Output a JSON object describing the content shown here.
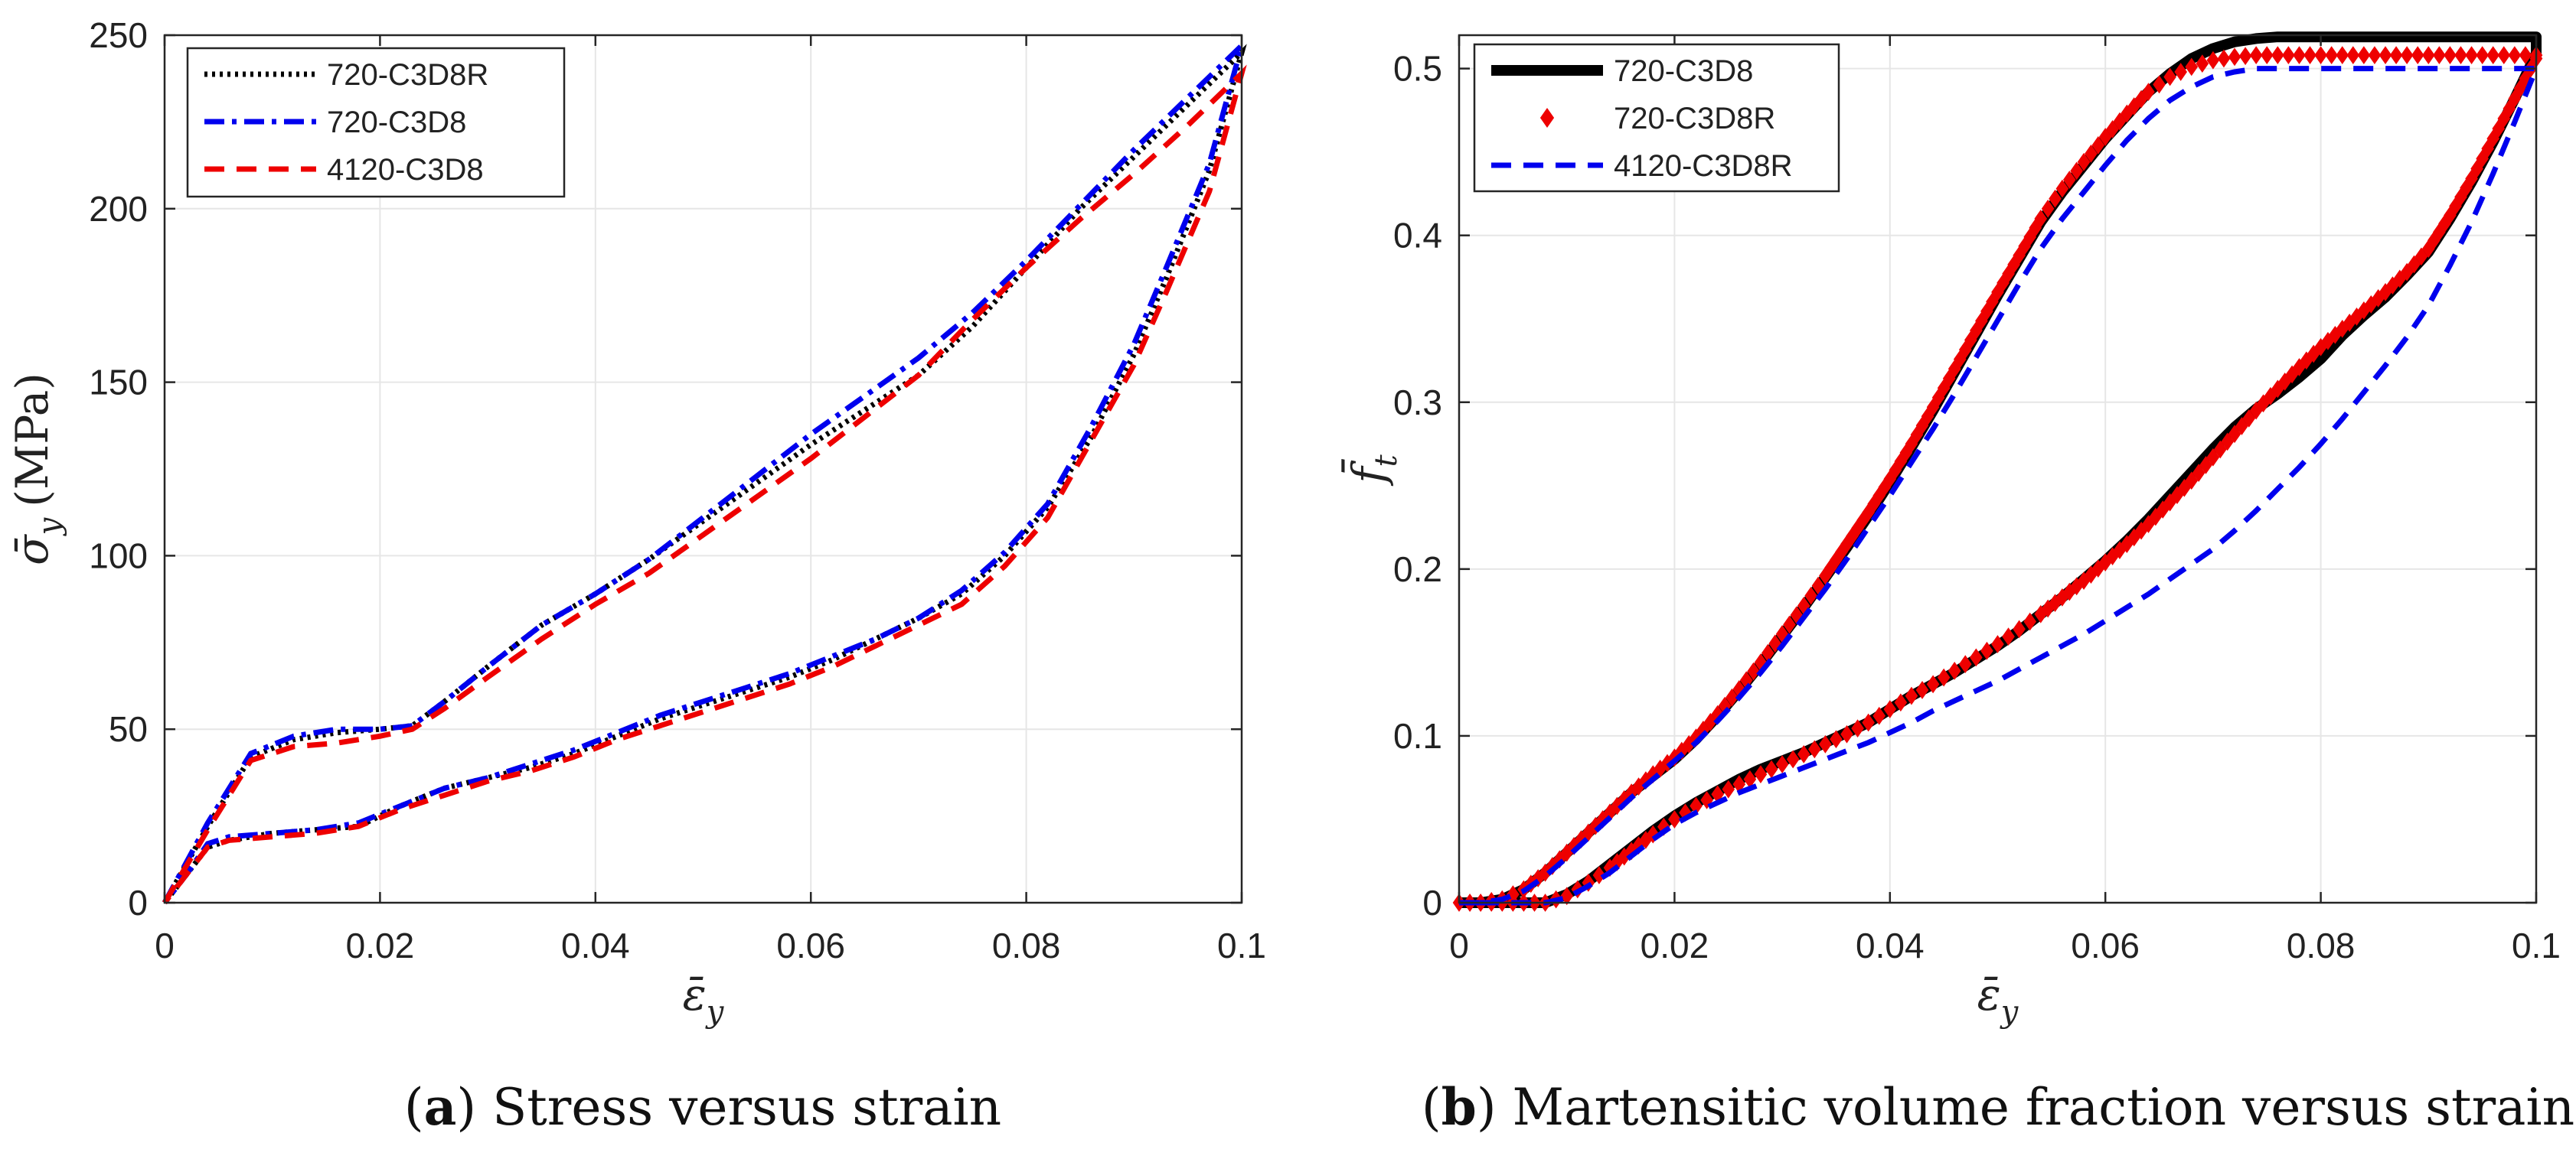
{
  "chart_data": [
    {
      "type": "line",
      "caption_letter": "a",
      "caption_text": ") Stress versus strain",
      "xlabel": "ε̄",
      "xlabel_sub": "y",
      "ylabel": "σ̄",
      "ylabel_sub": "y",
      "ylabel_unit": "(MPa)",
      "xlim": [
        0,
        0.1
      ],
      "ylim": [
        0,
        250
      ],
      "xticks": [
        0,
        0.02,
        0.04,
        0.06,
        0.08,
        0.1
      ],
      "xtick_labels": [
        "0",
        "0.02",
        "0.04",
        "0.06",
        "0.08",
        "0.1"
      ],
      "yticks": [
        0,
        50,
        100,
        150,
        200,
        250
      ],
      "ytick_labels": [
        "0",
        "50",
        "100",
        "150",
        "200",
        "250"
      ],
      "grid": true,
      "legend_position": "top-left",
      "series": [
        {
          "name": "720-C3D8R",
          "color": "#000000",
          "style": "dotted",
          "x": [
            0,
            0.004,
            0.008,
            0.012,
            0.016,
            0.02,
            0.023,
            0.026,
            0.03,
            0.035,
            0.04,
            0.045,
            0.05,
            0.055,
            0.06,
            0.065,
            0.07,
            0.075,
            0.08,
            0.085,
            0.09,
            0.095,
            0.1,
            0.097,
            0.093,
            0.09,
            0.086,
            0.082,
            0.078,
            0.074,
            0.07,
            0.066,
            0.062,
            0.058,
            0.054,
            0.05,
            0.046,
            0.042,
            0.038,
            0.034,
            0.03,
            0.026,
            0.022,
            0.018,
            0.014,
            0.01,
            0.006,
            0.004,
            0.002,
            0
          ],
          "y": [
            0,
            22,
            42,
            47,
            49,
            50,
            51,
            58,
            68,
            80,
            89,
            99,
            110,
            121,
            132,
            142,
            152,
            166,
            183,
            200,
            215,
            230,
            245,
            211,
            180,
            158,
            134,
            114,
            100,
            89,
            82,
            76,
            70,
            65,
            61,
            57,
            53,
            48,
            43,
            39,
            36,
            33,
            28,
            22,
            21,
            20,
            18,
            16,
            8,
            0
          ]
        },
        {
          "name": "720-C3D8",
          "color": "#0000ee",
          "style": "dashdot",
          "x": [
            0,
            0.004,
            0.008,
            0.012,
            0.016,
            0.02,
            0.023,
            0.026,
            0.03,
            0.035,
            0.04,
            0.045,
            0.05,
            0.055,
            0.06,
            0.065,
            0.07,
            0.075,
            0.08,
            0.085,
            0.09,
            0.095,
            0.1,
            0.097,
            0.093,
            0.09,
            0.086,
            0.082,
            0.078,
            0.074,
            0.07,
            0.066,
            0.062,
            0.058,
            0.054,
            0.05,
            0.046,
            0.042,
            0.038,
            0.034,
            0.03,
            0.026,
            0.022,
            0.018,
            0.014,
            0.01,
            0.006,
            0.004,
            0.002,
            0
          ],
          "y": [
            0,
            23,
            43,
            48,
            50,
            50,
            51,
            58,
            68,
            80,
            89,
            99,
            111,
            123,
            135,
            146,
            157,
            170,
            185,
            201,
            217,
            232,
            247,
            213,
            183,
            161,
            137,
            115,
            101,
            90,
            82,
            76,
            71,
            66,
            62,
            58,
            54,
            49,
            44,
            40,
            36,
            33,
            28,
            23,
            21,
            20,
            19,
            17,
            8,
            0
          ]
        },
        {
          "name": "4120-C3D8",
          "color": "#ee0000",
          "style": "dashed",
          "x": [
            0,
            0.004,
            0.008,
            0.012,
            0.016,
            0.02,
            0.023,
            0.026,
            0.03,
            0.035,
            0.04,
            0.045,
            0.05,
            0.055,
            0.06,
            0.065,
            0.07,
            0.075,
            0.08,
            0.085,
            0.09,
            0.095,
            0.1,
            0.097,
            0.093,
            0.09,
            0.086,
            0.082,
            0.078,
            0.074,
            0.07,
            0.066,
            0.062,
            0.058,
            0.054,
            0.05,
            0.046,
            0.042,
            0.038,
            0.034,
            0.03,
            0.026,
            0.022,
            0.018,
            0.014,
            0.01,
            0.006,
            0.004,
            0.002,
            0
          ],
          "y": [
            0,
            21,
            41,
            45,
            46,
            48,
            50,
            56,
            65,
            76,
            86,
            95,
            106,
            117,
            128,
            140,
            152,
            168,
            183,
            197,
            210,
            224,
            239,
            205,
            176,
            155,
            133,
            111,
            97,
            86,
            80,
            74,
            68,
            63,
            59,
            55,
            51,
            47,
            42,
            38,
            35,
            31,
            27,
            22,
            20,
            19,
            18,
            16,
            8,
            0
          ]
        }
      ]
    },
    {
      "type": "line",
      "caption_letter": "b",
      "caption_text": ") Martensitic volume fraction versus strain",
      "xlabel": "ε̄",
      "xlabel_sub": "y",
      "ylabel": "f̄",
      "ylabel_sub": "t",
      "ylabel_unit": "",
      "xlim": [
        0,
        0.1
      ],
      "ylim": [
        0,
        0.52
      ],
      "xticks": [
        0,
        0.02,
        0.04,
        0.06,
        0.08,
        0.1
      ],
      "xtick_labels": [
        "0",
        "0.02",
        "0.04",
        "0.06",
        "0.08",
        "0.1"
      ],
      "yticks": [
        0,
        0.1,
        0.2,
        0.3,
        0.4,
        0.5
      ],
      "ytick_labels": [
        "0",
        "0.1",
        "0.2",
        "0.3",
        "0.4",
        "0.5"
      ],
      "grid": true,
      "legend_position": "top-left",
      "series": [
        {
          "name": "720-C3D8",
          "color": "#000000",
          "style": "solid-thick",
          "x": [
            0,
            0.002,
            0.004,
            0.006,
            0.008,
            0.01,
            0.012,
            0.014,
            0.016,
            0.018,
            0.02,
            0.022,
            0.024,
            0.026,
            0.028,
            0.03,
            0.032,
            0.034,
            0.036,
            0.038,
            0.04,
            0.042,
            0.044,
            0.046,
            0.048,
            0.05,
            0.052,
            0.054,
            0.056,
            0.058,
            0.06,
            0.062,
            0.064,
            0.066,
            0.068,
            0.07,
            0.072,
            0.074,
            0.076,
            0.078,
            0.08,
            0.085,
            0.09,
            0.095,
            0.1,
            0.1,
            0.098,
            0.096,
            0.094,
            0.092,
            0.09,
            0.088,
            0.086,
            0.084,
            0.082,
            0.08,
            0.078,
            0.076,
            0.074,
            0.072,
            0.07,
            0.068,
            0.066,
            0.064,
            0.062,
            0.06,
            0.058,
            0.056,
            0.054,
            0.052,
            0.05,
            0.048,
            0.046,
            0.044,
            0.042,
            0.04,
            0.038,
            0.036,
            0.034,
            0.032,
            0.03,
            0.028,
            0.026,
            0.024,
            0.022,
            0.02,
            0.018,
            0.016,
            0.014,
            0.012,
            0.01,
            0.008,
            0.006,
            0.004,
            0.002,
            0
          ],
          "y": [
            0,
            0,
            0.002,
            0.008,
            0.018,
            0.03,
            0.042,
            0.054,
            0.066,
            0.076,
            0.086,
            0.098,
            0.112,
            0.127,
            0.143,
            0.16,
            0.177,
            0.195,
            0.213,
            0.232,
            0.252,
            0.273,
            0.295,
            0.318,
            0.341,
            0.364,
            0.386,
            0.408,
            0.426,
            0.442,
            0.458,
            0.472,
            0.486,
            0.497,
            0.506,
            0.512,
            0.516,
            0.518,
            0.519,
            0.519,
            0.519,
            0.519,
            0.519,
            0.519,
            0.519,
            0.509,
            0.482,
            0.456,
            0.432,
            0.41,
            0.39,
            0.376,
            0.363,
            0.352,
            0.34,
            0.326,
            0.315,
            0.305,
            0.296,
            0.285,
            0.272,
            0.258,
            0.244,
            0.23,
            0.217,
            0.205,
            0.194,
            0.183,
            0.173,
            0.163,
            0.154,
            0.146,
            0.138,
            0.131,
            0.124,
            0.116,
            0.108,
            0.102,
            0.096,
            0.09,
            0.085,
            0.08,
            0.074,
            0.067,
            0.06,
            0.052,
            0.043,
            0.033,
            0.023,
            0.013,
            0.005,
            0,
            0,
            0,
            0,
            0
          ]
        },
        {
          "name": "720-C3D8R",
          "color": "#ee0000",
          "style": "diamond-markers",
          "x": [
            0,
            0.002,
            0.004,
            0.006,
            0.008,
            0.01,
            0.012,
            0.014,
            0.016,
            0.018,
            0.02,
            0.022,
            0.024,
            0.026,
            0.028,
            0.03,
            0.032,
            0.034,
            0.036,
            0.038,
            0.04,
            0.042,
            0.044,
            0.046,
            0.048,
            0.05,
            0.052,
            0.054,
            0.056,
            0.058,
            0.06,
            0.062,
            0.064,
            0.066,
            0.068,
            0.07,
            0.072,
            0.074,
            0.076,
            0.078,
            0.08,
            0.085,
            0.09,
            0.095,
            0.1,
            0.1,
            0.098,
            0.096,
            0.094,
            0.092,
            0.09,
            0.088,
            0.086,
            0.084,
            0.082,
            0.08,
            0.078,
            0.076,
            0.074,
            0.072,
            0.07,
            0.068,
            0.066,
            0.064,
            0.062,
            0.06,
            0.058,
            0.056,
            0.054,
            0.052,
            0.05,
            0.048,
            0.046,
            0.044,
            0.042,
            0.04,
            0.038,
            0.036,
            0.034,
            0.032,
            0.03,
            0.028,
            0.026,
            0.024,
            0.022,
            0.02,
            0.018,
            0.016,
            0.014,
            0.012,
            0.01,
            0.008,
            0.006,
            0.004,
            0.002,
            0
          ],
          "y": [
            0,
            0,
            0.002,
            0.008,
            0.018,
            0.03,
            0.042,
            0.054,
            0.066,
            0.077,
            0.087,
            0.099,
            0.113,
            0.128,
            0.144,
            0.161,
            0.178,
            0.196,
            0.215,
            0.234,
            0.254,
            0.275,
            0.297,
            0.32,
            0.343,
            0.366,
            0.388,
            0.41,
            0.428,
            0.444,
            0.459,
            0.473,
            0.486,
            0.495,
            0.501,
            0.505,
            0.507,
            0.508,
            0.508,
            0.508,
            0.508,
            0.508,
            0.508,
            0.508,
            0.508,
            0.506,
            0.482,
            0.458,
            0.434,
            0.412,
            0.392,
            0.378,
            0.366,
            0.355,
            0.344,
            0.333,
            0.321,
            0.308,
            0.295,
            0.281,
            0.267,
            0.253,
            0.24,
            0.227,
            0.215,
            0.204,
            0.193,
            0.183,
            0.173,
            0.164,
            0.155,
            0.147,
            0.139,
            0.131,
            0.124,
            0.116,
            0.108,
            0.101,
            0.095,
            0.089,
            0.083,
            0.077,
            0.071,
            0.065,
            0.058,
            0.05,
            0.041,
            0.031,
            0.021,
            0.012,
            0.004,
            0,
            0,
            0,
            0,
            0
          ]
        },
        {
          "name": "4120-C3D8R",
          "color": "#0000ee",
          "style": "dashed",
          "x": [
            0,
            0.002,
            0.004,
            0.006,
            0.008,
            0.01,
            0.012,
            0.014,
            0.016,
            0.018,
            0.02,
            0.022,
            0.024,
            0.026,
            0.028,
            0.03,
            0.032,
            0.034,
            0.036,
            0.038,
            0.04,
            0.042,
            0.044,
            0.046,
            0.048,
            0.05,
            0.052,
            0.054,
            0.056,
            0.058,
            0.06,
            0.062,
            0.064,
            0.066,
            0.068,
            0.07,
            0.072,
            0.074,
            0.076,
            0.078,
            0.08,
            0.085,
            0.09,
            0.095,
            0.1,
            0.1,
            0.098,
            0.096,
            0.094,
            0.092,
            0.09,
            0.088,
            0.086,
            0.084,
            0.082,
            0.08,
            0.078,
            0.076,
            0.074,
            0.072,
            0.07,
            0.068,
            0.066,
            0.064,
            0.062,
            0.06,
            0.058,
            0.056,
            0.054,
            0.052,
            0.05,
            0.048,
            0.046,
            0.044,
            0.042,
            0.04,
            0.038,
            0.036,
            0.034,
            0.032,
            0.03,
            0.028,
            0.026,
            0.024,
            0.022,
            0.02,
            0.018,
            0.016,
            0.014,
            0.012,
            0.01,
            0.008,
            0.006,
            0.004,
            0.002,
            0
          ],
          "y": [
            0,
            0,
            0.002,
            0.007,
            0.016,
            0.027,
            0.039,
            0.051,
            0.063,
            0.074,
            0.085,
            0.096,
            0.109,
            0.123,
            0.138,
            0.154,
            0.171,
            0.188,
            0.206,
            0.225,
            0.244,
            0.264,
            0.284,
            0.305,
            0.327,
            0.349,
            0.371,
            0.392,
            0.41,
            0.426,
            0.442,
            0.457,
            0.47,
            0.481,
            0.489,
            0.495,
            0.498,
            0.5,
            0.5,
            0.5,
            0.5,
            0.5,
            0.5,
            0.5,
            0.5,
            0.5,
            0.468,
            0.437,
            0.408,
            0.382,
            0.358,
            0.339,
            0.322,
            0.306,
            0.29,
            0.275,
            0.261,
            0.248,
            0.235,
            0.223,
            0.212,
            0.203,
            0.194,
            0.185,
            0.177,
            0.169,
            0.161,
            0.154,
            0.147,
            0.14,
            0.133,
            0.127,
            0.121,
            0.115,
            0.108,
            0.102,
            0.096,
            0.091,
            0.086,
            0.081,
            0.076,
            0.071,
            0.066,
            0.06,
            0.054,
            0.047,
            0.038,
            0.028,
            0.018,
            0.01,
            0.003,
            0,
            0,
            0,
            0,
            0
          ]
        }
      ]
    }
  ]
}
